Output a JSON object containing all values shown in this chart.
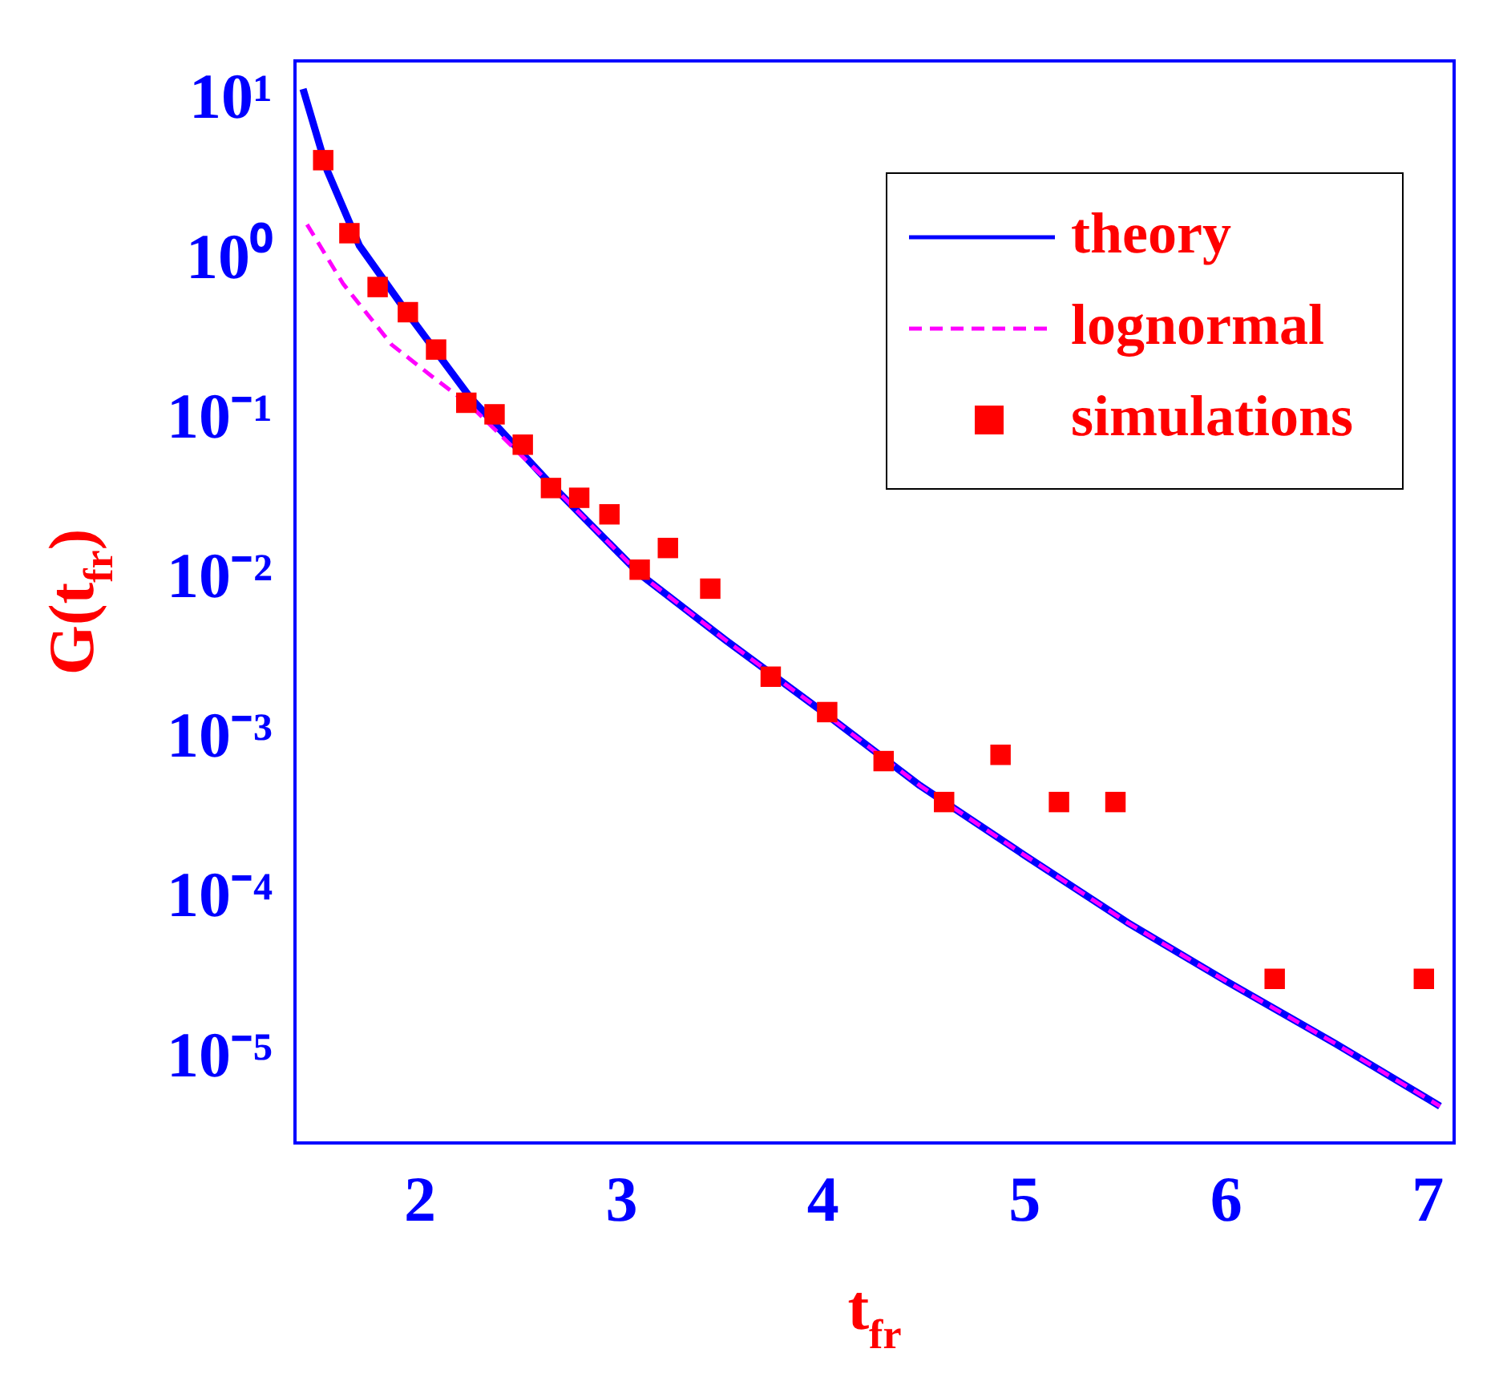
{
  "chart_data": {
    "type": "scatter",
    "xlabel": "t$_{fr}$",
    "ylabel": "G(t$_{fr}$)",
    "log": "y",
    "xlim": [
      1.38,
      7.13
    ],
    "xticks": [
      2,
      3,
      4,
      5,
      6,
      7
    ],
    "ylim": [
      3e-06,
      18
    ],
    "yticks": [
      {
        "value": 10,
        "label": "10¹"
      },
      {
        "value": 1,
        "label": "10⁰"
      },
      {
        "value": 0.1,
        "label": "10⁻¹"
      },
      {
        "value": 0.01,
        "label": "10⁻²"
      },
      {
        "value": 0.001,
        "label": "10⁻³"
      },
      {
        "value": 0.0001,
        "label": "10⁻⁴"
      },
      {
        "value": 1e-05,
        "label": "10⁻⁵"
      }
    ],
    "grid": false,
    "legend": "top right",
    "series": [
      {
        "name": "theory",
        "type": "line",
        "color": "#0000ff",
        "line_style": "solid",
        "marker": "none",
        "x": [
          1.42,
          1.54,
          1.7,
          1.94,
          2.25,
          2.65,
          3.09,
          3.52,
          4.0,
          4.48,
          5.0,
          5.51,
          5.98,
          6.54,
          7.06
        ],
        "values": [
          12,
          3.7,
          1.25,
          0.47,
          0.14,
          0.04,
          0.011,
          0.0042,
          0.0015,
          0.00052,
          0.00019,
          7.2e-05,
          3.2e-05,
          1.26e-05,
          5.1e-06
        ]
      },
      {
        "name": "lognormal",
        "type": "line",
        "color": "#ff00ff",
        "line_style": "dashed",
        "marker": "none",
        "x": [
          1.44,
          1.62,
          1.86,
          2.06,
          2.25,
          2.65,
          3.09,
          3.52,
          4.0,
          4.48,
          5.0,
          5.51,
          5.98,
          6.54,
          7.06
        ],
        "values": [
          1.7,
          0.72,
          0.3,
          0.19,
          0.125,
          0.04,
          0.011,
          0.0042,
          0.0015,
          0.00052,
          0.00019,
          7.2e-05,
          3.2e-05,
          1.26e-05,
          5.1e-06
        ]
      },
      {
        "name": "simulations",
        "type": "scatter",
        "color": "#ff0000",
        "marker": "square",
        "x": [
          1.52,
          1.65,
          1.79,
          1.94,
          2.08,
          2.23,
          2.37,
          2.51,
          2.65,
          2.79,
          2.94,
          3.09,
          3.23,
          3.44,
          3.74,
          4.02,
          4.3,
          4.6,
          4.88,
          5.17,
          5.45,
          6.24,
          6.98
        ],
        "values": [
          4.3,
          1.5,
          0.69,
          0.48,
          0.28,
          0.13,
          0.11,
          0.071,
          0.038,
          0.033,
          0.026,
          0.0117,
          0.016,
          0.0089,
          0.0025,
          0.0015,
          0.00074,
          0.00041,
          0.00081,
          0.00041,
          0.00041,
          3.2e-05,
          3.2e-05
        ]
      }
    ]
  }
}
